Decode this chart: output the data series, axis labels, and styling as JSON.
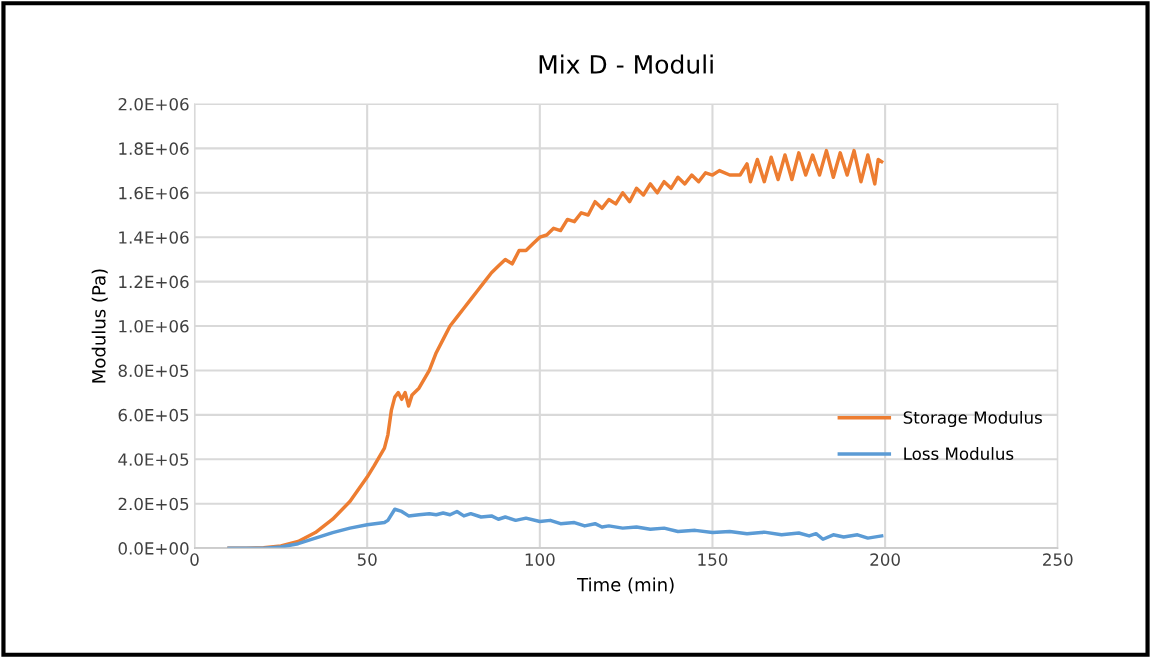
{
  "chart_data": {
    "type": "line",
    "title": "Mix D - Moduli",
    "xlabel": "Time (min)",
    "ylabel": "Modulus (Pa)",
    "xlim": [
      0,
      250
    ],
    "xticks": [
      0,
      50,
      100,
      150,
      200,
      250
    ],
    "ylim": [
      0,
      2000000
    ],
    "yticks": [
      {
        "value": 0,
        "label": "0.0E+00"
      },
      {
        "value": 200000,
        "label": "2.0E+05"
      },
      {
        "value": 400000,
        "label": "4.0E+05"
      },
      {
        "value": 600000,
        "label": "6.0E+05"
      },
      {
        "value": 800000,
        "label": "8.0E+05"
      },
      {
        "value": 1000000,
        "label": "1.0E+06"
      },
      {
        "value": 1200000,
        "label": "1.2E+06"
      },
      {
        "value": 1400000,
        "label": "1.4E+06"
      },
      {
        "value": 1600000,
        "label": "1.6E+06"
      },
      {
        "value": 1800000,
        "label": "1.8E+06"
      },
      {
        "value": 2000000,
        "label": "2.0E+06"
      }
    ],
    "grid": true,
    "legend": "right",
    "marker": "none",
    "line_style": "solid",
    "series": [
      {
        "name": "Storage Modulus",
        "color": "#ed7d31",
        "x": [
          10,
          15,
          20,
          25,
          30,
          35,
          40,
          45,
          50,
          52,
          55,
          56,
          57,
          58,
          59,
          60,
          61,
          62,
          63,
          65,
          68,
          70,
          72,
          74,
          76,
          78,
          80,
          82,
          84,
          86,
          88,
          90,
          92,
          94,
          96,
          98,
          100,
          102,
          104,
          106,
          108,
          110,
          112,
          114,
          116,
          118,
          120,
          122,
          124,
          126,
          128,
          130,
          132,
          134,
          136,
          138,
          140,
          142,
          144,
          146,
          148,
          150,
          152,
          155,
          158,
          160,
          161,
          163,
          165,
          167,
          169,
          171,
          173,
          175,
          177,
          179,
          181,
          183,
          185,
          187,
          189,
          191,
          193,
          195,
          197,
          198,
          199
        ],
        "values": [
          0,
          0,
          2000,
          10000,
          30000,
          70000,
          130000,
          210000,
          320000,
          370000,
          450000,
          510000,
          620000,
          680000,
          700000,
          670000,
          700000,
          640000,
          690000,
          720000,
          800000,
          880000,
          940000,
          1000000,
          1040000,
          1080000,
          1120000,
          1160000,
          1200000,
          1240000,
          1270000,
          1300000,
          1280000,
          1340000,
          1340000,
          1370000,
          1400000,
          1410000,
          1440000,
          1430000,
          1480000,
          1470000,
          1510000,
          1500000,
          1560000,
          1530000,
          1570000,
          1550000,
          1600000,
          1560000,
          1620000,
          1590000,
          1640000,
          1600000,
          1650000,
          1620000,
          1670000,
          1640000,
          1680000,
          1650000,
          1690000,
          1680000,
          1700000,
          1680000,
          1680000,
          1730000,
          1650000,
          1750000,
          1650000,
          1760000,
          1660000,
          1770000,
          1660000,
          1780000,
          1680000,
          1770000,
          1680000,
          1790000,
          1670000,
          1780000,
          1680000,
          1790000,
          1650000,
          1770000,
          1640000,
          1750000,
          1740000
        ]
      },
      {
        "name": "Loss Modulus",
        "color": "#5b9bd5",
        "x": [
          10,
          20,
          25,
          30,
          35,
          40,
          45,
          50,
          55,
          56,
          58,
          60,
          62,
          65,
          68,
          70,
          72,
          74,
          76,
          78,
          80,
          83,
          86,
          88,
          90,
          93,
          96,
          100,
          103,
          106,
          110,
          113,
          116,
          118,
          120,
          124,
          128,
          132,
          136,
          140,
          145,
          150,
          155,
          160,
          165,
          170,
          175,
          178,
          180,
          182,
          185,
          188,
          192,
          195,
          199
        ],
        "values": [
          0,
          0,
          5000,
          20000,
          45000,
          70000,
          90000,
          105000,
          115000,
          125000,
          175000,
          165000,
          145000,
          150000,
          155000,
          150000,
          158000,
          150000,
          165000,
          145000,
          155000,
          140000,
          145000,
          130000,
          140000,
          125000,
          135000,
          120000,
          125000,
          110000,
          115000,
          100000,
          110000,
          95000,
          100000,
          90000,
          95000,
          85000,
          90000,
          75000,
          80000,
          70000,
          75000,
          65000,
          72000,
          60000,
          68000,
          55000,
          65000,
          40000,
          60000,
          50000,
          60000,
          45000,
          55000
        ]
      }
    ]
  }
}
